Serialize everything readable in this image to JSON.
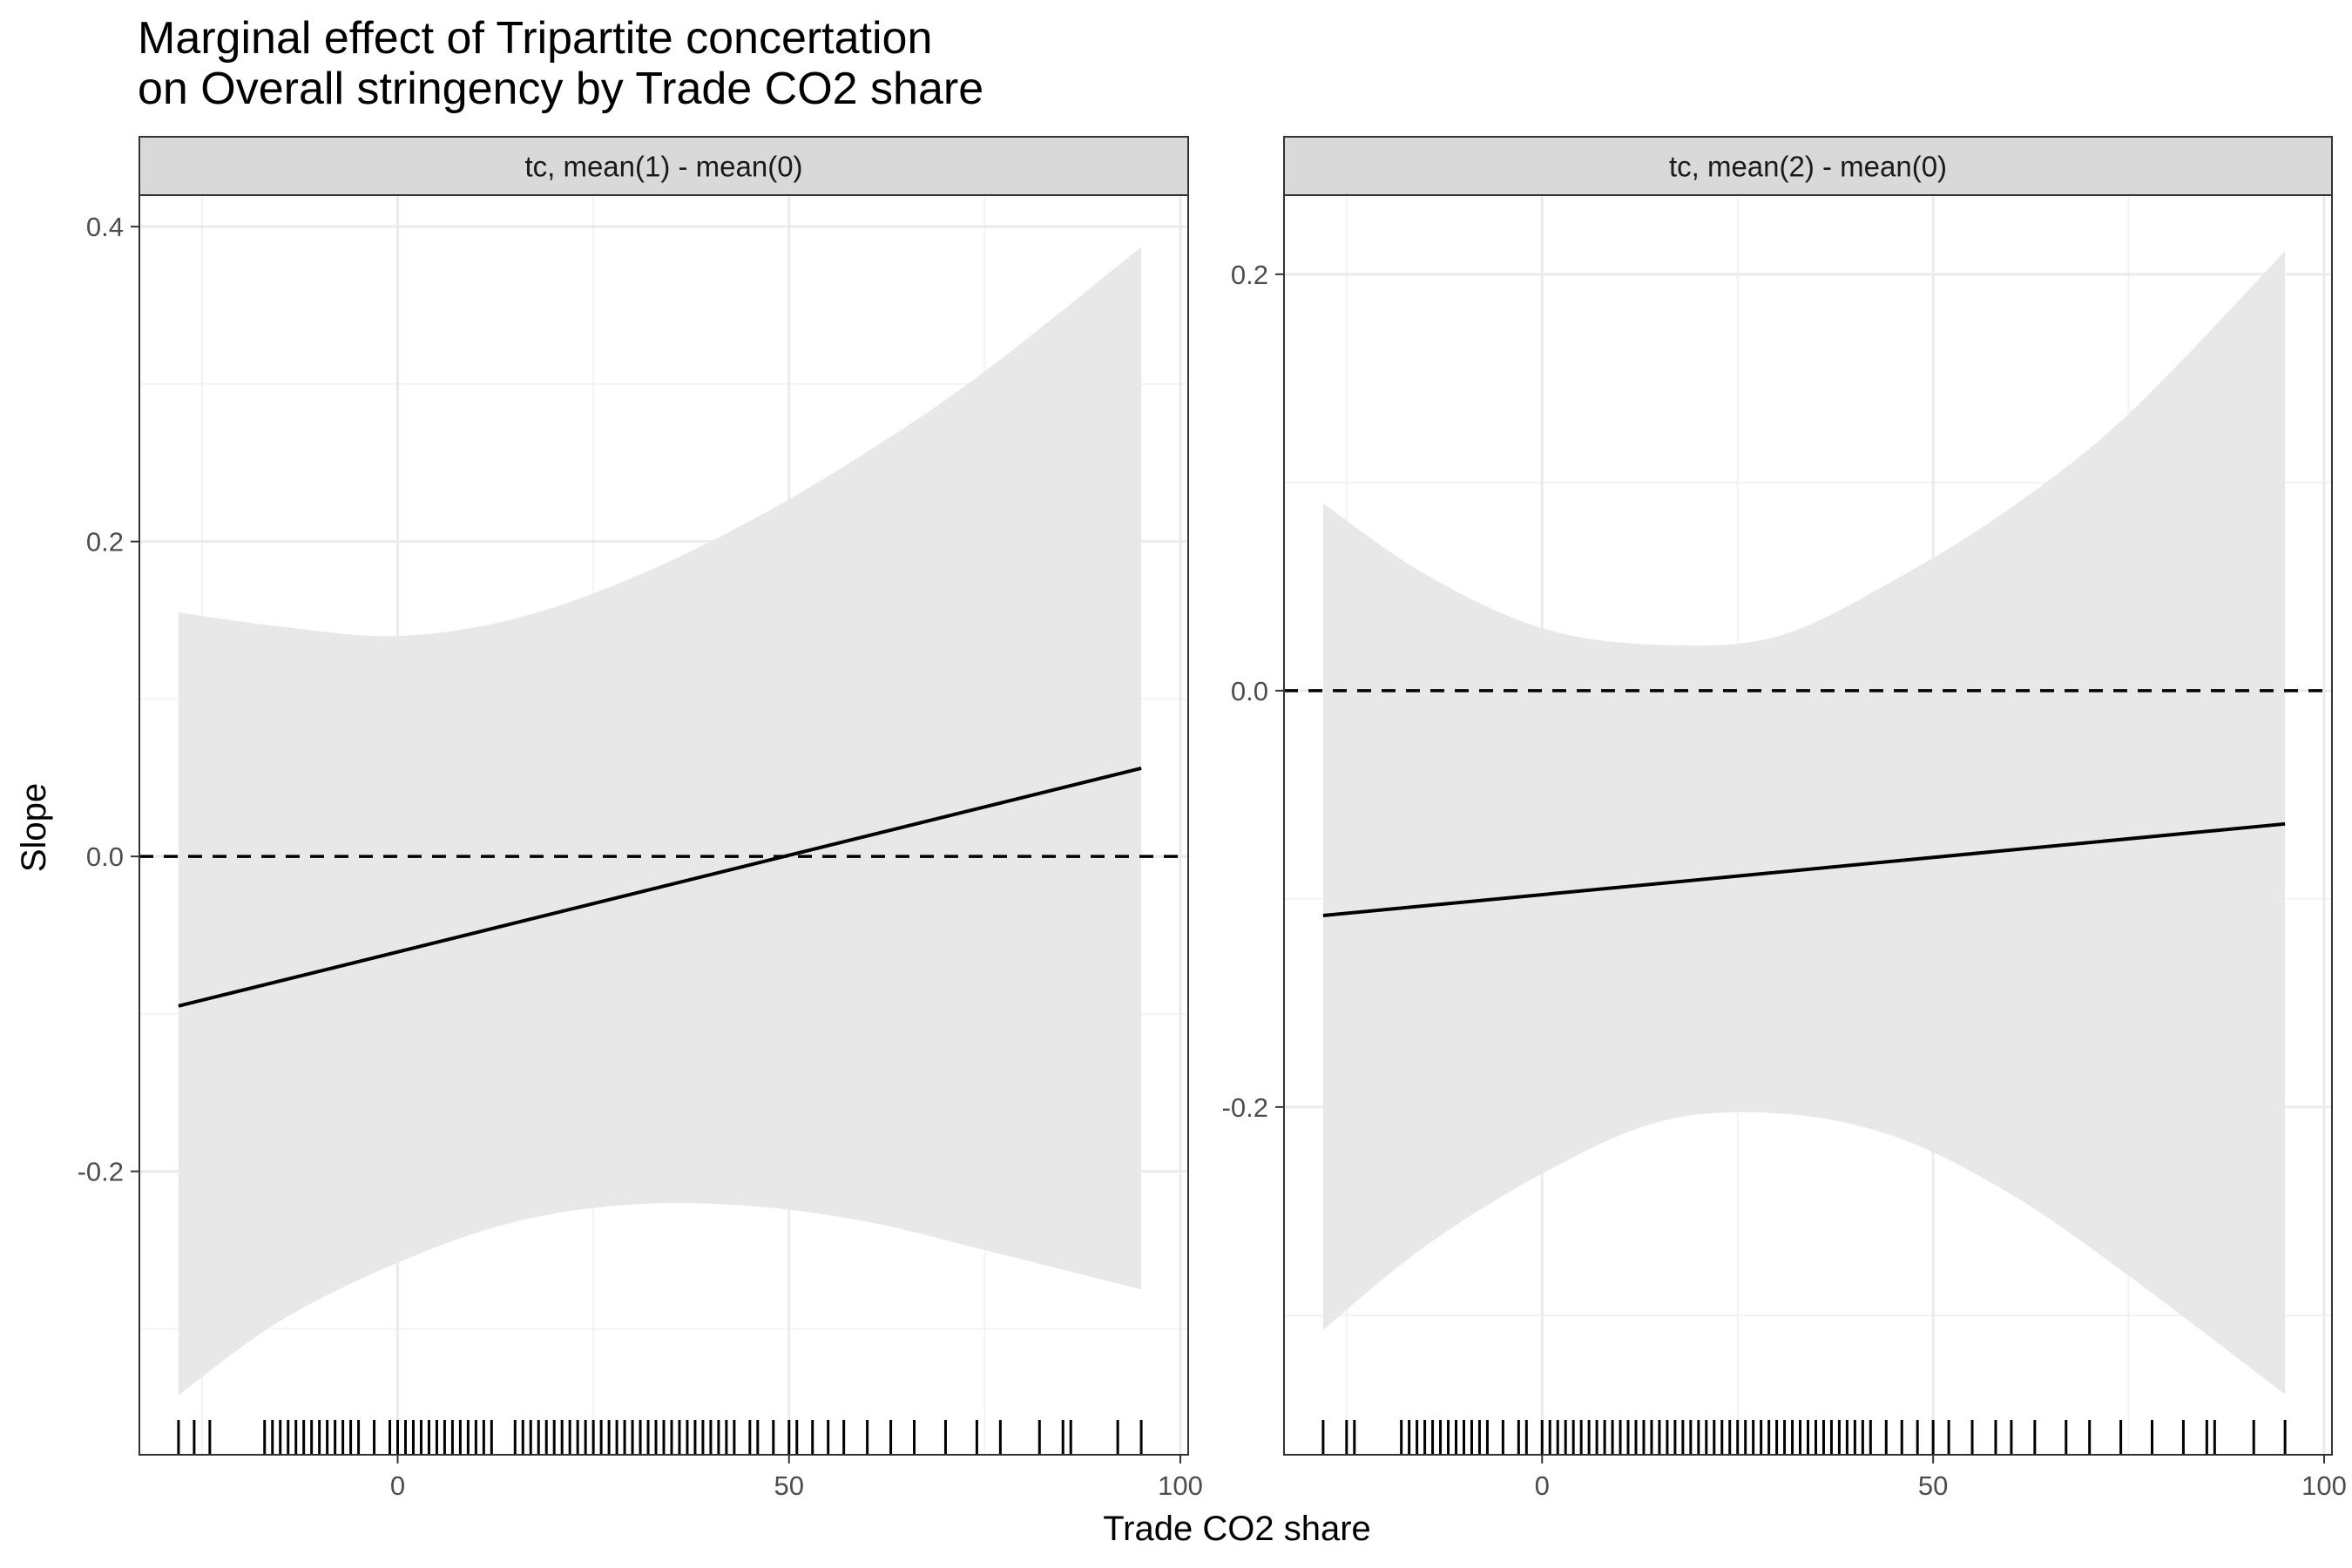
{
  "chart_data": {
    "type": "line",
    "title_lines": [
      "Marginal effect of Tripartite concertation",
      "on Overall stringency by Trade CO2 share"
    ],
    "xlabel": "Trade CO2 share",
    "ylabel": "Slope",
    "facets": [
      {
        "strip": "tc, mean(1) - mean(0)",
        "xlim": [
          -33,
          101
        ],
        "ylim": [
          -0.38,
          0.42
        ],
        "xticks": [
          0,
          50,
          100
        ],
        "yticks": [
          -0.2,
          0.0,
          0.2,
          0.4
        ],
        "ytick_labels": [
          "-0.2",
          "0.0",
          "0.2",
          "0.4"
        ],
        "xtick_labels": [
          "0",
          "50",
          "100"
        ],
        "reference_line": 0.0,
        "slope": {
          "x": [
            -28,
            95
          ],
          "y": [
            -0.095,
            0.056
          ]
        },
        "ci": {
          "x": [
            -28,
            -15,
            0,
            15,
            30,
            45,
            60,
            75,
            95
          ],
          "upper": [
            0.155,
            0.146,
            0.14,
            0.151,
            0.177,
            0.213,
            0.257,
            0.308,
            0.387
          ],
          "lower": [
            -0.342,
            -0.295,
            -0.258,
            -0.232,
            -0.221,
            -0.222,
            -0.232,
            -0.25,
            -0.275
          ]
        },
        "rug": [
          -28,
          -26,
          -24,
          -17,
          -16,
          -15,
          -14,
          -13,
          -12,
          -11,
          -10,
          -9,
          -8,
          -7,
          -6,
          -5,
          -3,
          -1,
          0,
          1,
          2,
          3,
          4,
          5,
          6,
          7,
          8,
          9,
          10,
          11,
          12,
          15,
          16,
          17,
          18,
          19,
          20,
          21,
          22,
          23,
          24,
          25,
          26,
          27,
          28,
          29,
          30,
          31,
          32,
          33,
          34,
          35,
          36,
          37,
          38,
          39,
          40,
          41,
          42,
          43,
          45,
          46,
          48,
          50,
          51,
          53,
          55,
          57,
          60,
          63,
          66,
          70,
          74,
          77,
          82,
          85,
          86,
          92,
          95
        ]
      },
      {
        "strip": "tc, mean(2) - mean(0)",
        "xlim": [
          -33,
          101
        ],
        "ylim": [
          -0.367,
          0.238
        ],
        "xticks": [
          0,
          50,
          100
        ],
        "yticks": [
          -0.2,
          0.0,
          0.2
        ],
        "ytick_labels": [
          "-0.2",
          "0.0",
          "0.2"
        ],
        "xtick_labels": [
          "0",
          "50",
          "100"
        ],
        "reference_line": 0.0,
        "slope": {
          "x": [
            -28,
            95
          ],
          "y": [
            -0.108,
            -0.064
          ]
        },
        "ci": {
          "x": [
            -28,
            -15,
            0,
            15,
            30,
            45,
            60,
            75,
            95
          ],
          "upper": [
            0.09,
            0.056,
            0.03,
            0.022,
            0.026,
            0.053,
            0.088,
            0.133,
            0.211
          ],
          "lower": [
            -0.307,
            -0.267,
            -0.232,
            -0.207,
            -0.203,
            -0.214,
            -0.242,
            -0.281,
            -0.338
          ]
        },
        "rug": [
          -28,
          -25,
          -24,
          -18,
          -17,
          -16,
          -15,
          -14,
          -13,
          -12,
          -11,
          -10,
          -9,
          -8,
          -7,
          -5,
          -3,
          -2,
          0,
          1,
          2,
          3,
          4,
          5,
          6,
          7,
          8,
          9,
          10,
          11,
          12,
          13,
          14,
          15,
          16,
          17,
          18,
          19,
          20,
          21,
          22,
          23,
          24,
          25,
          26,
          27,
          28,
          29,
          30,
          31,
          32,
          33,
          34,
          35,
          36,
          37,
          38,
          39,
          40,
          41,
          42,
          44,
          46,
          48,
          50,
          52,
          55,
          58,
          60,
          63,
          67,
          70,
          74,
          78,
          82,
          85,
          86,
          91,
          95
        ]
      }
    ]
  },
  "colors": {
    "ribbon": "#e8e8e8",
    "line": "#000000",
    "grid_major": "#ebebeb",
    "grid_minor": "#f3f3f3",
    "strip_bg": "#d9d9d9",
    "border": "#333333",
    "tick_text": "#4d4d4d"
  }
}
